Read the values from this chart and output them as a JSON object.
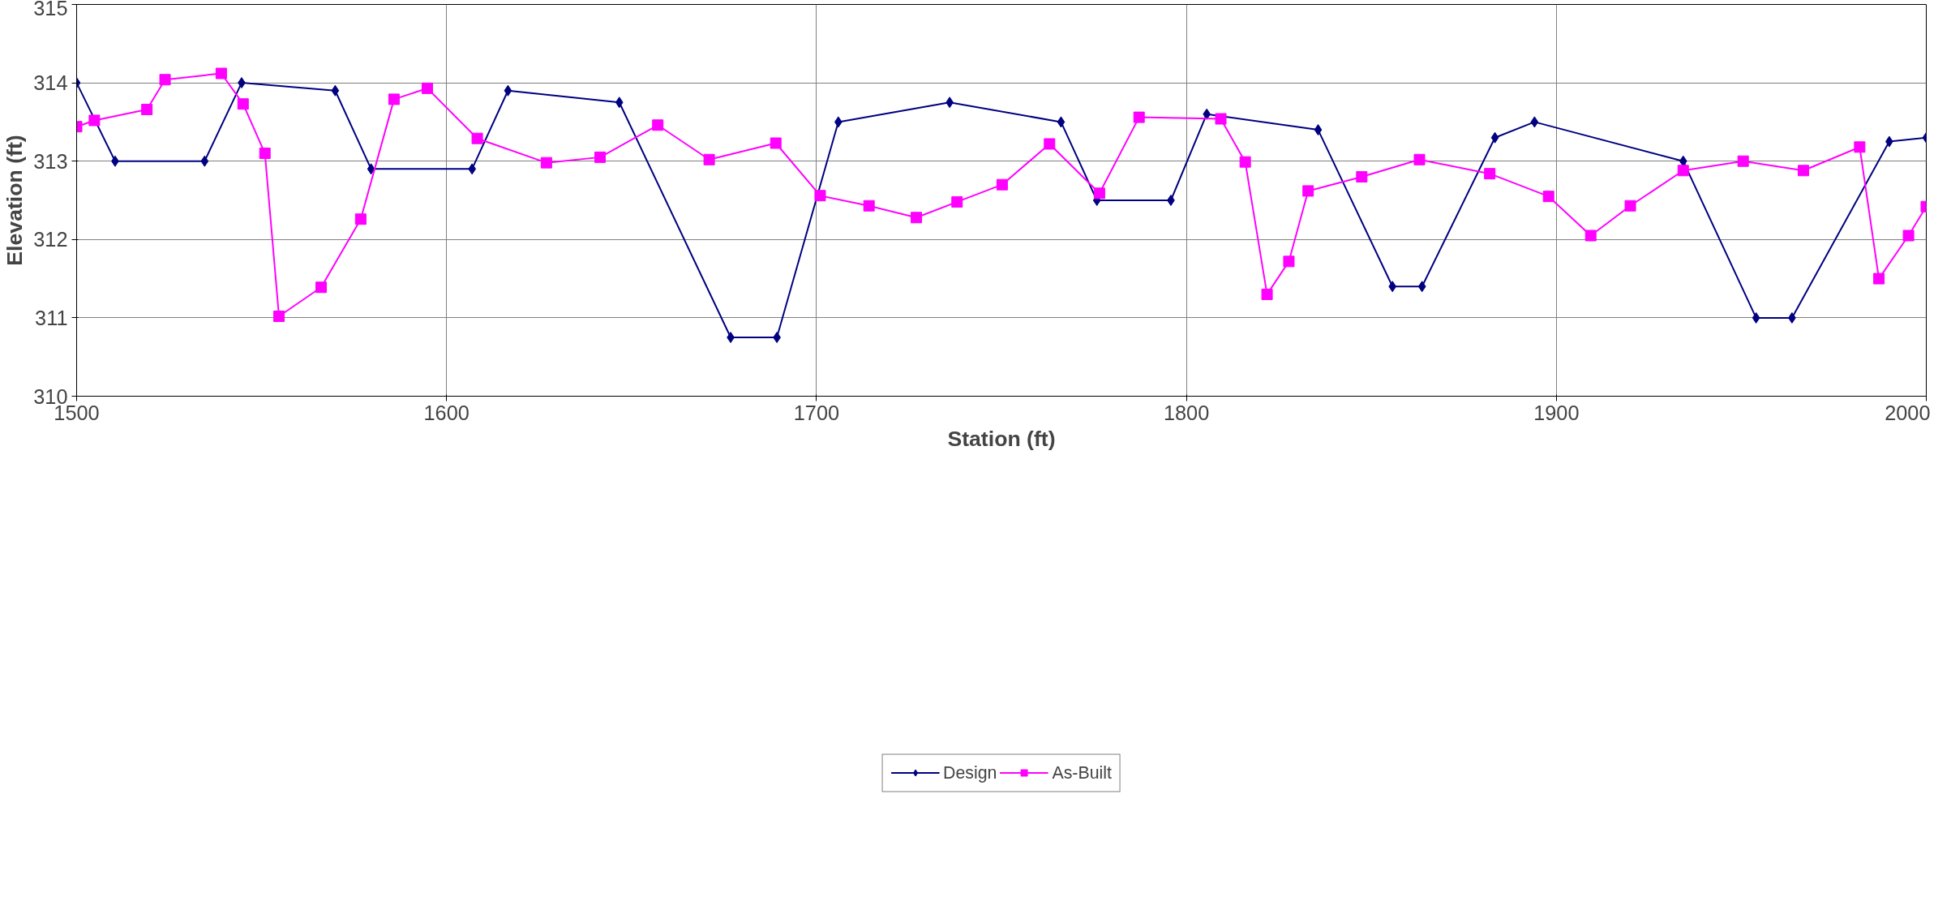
{
  "chart_data": {
    "type": "line",
    "xlabel": "Station (ft)",
    "ylabel": "Elevation (ft)",
    "xlim": [
      1500,
      2000
    ],
    "xticks": [
      1500,
      1600,
      1700,
      1800,
      1900,
      2000
    ],
    "ylim": [
      310,
      315
    ],
    "yticks": [
      310,
      311,
      312,
      313,
      314,
      315
    ],
    "grid": true,
    "legend": "bottom",
    "series": [
      {
        "name": "Design",
        "color": "#000080",
        "marker": "diamond",
        "x": [
          1500,
          1510.4,
          1534.6,
          1544.6,
          1569.9,
          1579.6,
          1606.9,
          1616.6,
          1646.7,
          1676.8,
          1689.3,
          1705.9,
          1736,
          1766.1,
          1775.8,
          1795.8,
          1805.5,
          1835.6,
          1855.7,
          1863.7,
          1883.4,
          1894.1,
          1934.3,
          1954,
          1963.7,
          1990,
          2000
        ],
        "values": [
          314.0,
          313.0,
          313.0,
          314.0,
          313.9,
          312.9,
          312.9,
          313.9,
          313.75,
          310.75,
          310.75,
          313.5,
          313.75,
          313.5,
          312.5,
          312.5,
          313.6,
          313.4,
          311.4,
          311.4,
          313.3,
          313.5,
          313.0,
          311.0,
          311.0,
          313.25,
          313.3
        ]
      },
      {
        "name": "As-Built",
        "color": "#ff00ff",
        "marker": "square",
        "x": [
          1500,
          1504.8,
          1519,
          1523.9,
          1539.1,
          1545,
          1550.9,
          1554.7,
          1566.1,
          1576.8,
          1585.8,
          1594.8,
          1608.3,
          1627,
          1641.5,
          1657.1,
          1671,
          1689,
          1701,
          1714.2,
          1727,
          1738,
          1750.2,
          1763,
          1776.5,
          1787.2,
          1809.3,
          1815.9,
          1821.8,
          1827.7,
          1832.9,
          1847.4,
          1863,
          1882,
          1897.9,
          1909.3,
          1920,
          1934.3,
          1950.5,
          1966.8,
          1982,
          1987.2,
          1995.2,
          2000
        ],
        "values": [
          313.44,
          313.52,
          313.66,
          314.04,
          314.12,
          313.73,
          313.1,
          311.02,
          311.39,
          312.26,
          313.79,
          313.93,
          313.29,
          312.98,
          313.05,
          313.46,
          313.02,
          313.23,
          312.56,
          312.43,
          312.28,
          312.48,
          312.7,
          313.22,
          312.59,
          313.56,
          313.54,
          312.99,
          311.3,
          311.72,
          312.62,
          312.8,
          313.02,
          312.84,
          312.55,
          312.05,
          312.43,
          312.88,
          313.0,
          312.88,
          313.18,
          311.5,
          312.05,
          312.42
        ]
      }
    ]
  }
}
